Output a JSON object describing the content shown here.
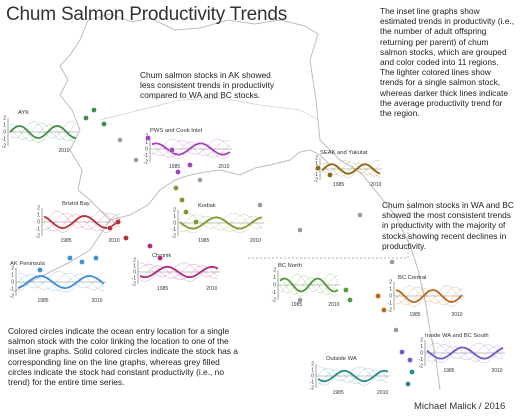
{
  "title": "Chum Salmon Productivity Trends",
  "notes": {
    "inset_description": "The inset line graphs show estimated trends in productivity (i.e., the number of adult offspring returning per parent) of chum salmon stocks, which are grouped and color coded into 11 regions. The lighter colored lines show trends for a single salmon stock, whereas darker thick lines indicate the average productivity trend for the region.",
    "alaska": "Chum salmon stocks in AK showed less consistent trends in productivity compared to WA and BC stocks.",
    "wa_bc": "Chum salmon stocks in WA and BC showed the most consistent trends in productivity with the majority of stocks showing recent declines in productivity.",
    "circles": "Colored circles indicate the ocean entry location for a single salmon stock with the color linking the location to one of the inset line graphs. Solid colored circles indicate the stock has a corresponding line on the line graphs, whereas grey filled circles indicate the stock had constant productivity (i.e., no trend) for the entire time series."
  },
  "credit": "Michael Malick / 2016",
  "colors": {
    "AYK": "#3f8f4a",
    "PWS": "#a63fbf",
    "Bristol": "#b5303b",
    "Kodiak": "#7d9a2e",
    "Chignik": "#b0297a",
    "AKPen": "#3e8fd6",
    "SEAK": "#8c6a12",
    "BCNorth": "#4f9a3a",
    "BCCentral": "#c0661b",
    "InsideWA": "#6a5acd",
    "OutsideWA": "#2a8a8c",
    "land": "#b9b9b9"
  },
  "regions": [
    {
      "key": "AYK",
      "name": "AYK",
      "x_ticks": [
        "2010"
      ],
      "y_ticks": [
        "2",
        "1",
        "0",
        "-1",
        "-2"
      ]
    },
    {
      "key": "PWS",
      "name": "PWS and Cook Inlet",
      "x_ticks": [
        "1985",
        "2010"
      ],
      "y_ticks": [
        "2",
        "1",
        "0",
        "-1",
        "-2"
      ]
    },
    {
      "key": "Bristol",
      "name": "Bristol Bay",
      "x_ticks": [
        "1985",
        "2010"
      ],
      "y_ticks": [
        "2",
        "1",
        "0",
        "-1",
        "-2"
      ]
    },
    {
      "key": "Kodiak",
      "name": "Kodiak",
      "x_ticks": [
        "1985",
        "2010"
      ],
      "y_ticks": [
        "2",
        "1",
        "0",
        "-1",
        "-2"
      ]
    },
    {
      "key": "Chignik",
      "name": "Chignik",
      "x_ticks": [
        "1985",
        "2010"
      ],
      "y_ticks": [
        "2",
        "1",
        "0",
        "-1",
        "-2"
      ]
    },
    {
      "key": "AKPen",
      "name": "AK Peninsula",
      "x_ticks": [
        "1985",
        "2010"
      ],
      "y_ticks": [
        "2",
        "1",
        "0",
        "-1",
        "-2"
      ]
    },
    {
      "key": "SEAK",
      "name": "SEAK and Yakutat",
      "x_ticks": [
        "1985",
        "2010"
      ],
      "y_ticks": [
        "2",
        "1",
        "0",
        "-1",
        "-2"
      ]
    },
    {
      "key": "BCNorth",
      "name": "BC North",
      "x_ticks": [
        "1985",
        "2010"
      ],
      "y_ticks": [
        "2",
        "1",
        "0",
        "-1",
        "-2"
      ]
    },
    {
      "key": "BCCentral",
      "name": "BC Central",
      "x_ticks": [
        "1985",
        "2010"
      ],
      "y_ticks": [
        "2",
        "1",
        "0",
        "-1",
        "-2"
      ]
    },
    {
      "key": "InsideWA",
      "name": "Inside WA and BC South",
      "x_ticks": [
        "1985",
        "2010"
      ],
      "y_ticks": [
        "2",
        "1",
        "0",
        "-1",
        "-2"
      ]
    },
    {
      "key": "OutsideWA",
      "name": "Outside WA",
      "x_ticks": [
        "1985",
        "2010"
      ],
      "y_ticks": [
        "2",
        "1",
        "0",
        "-1",
        "-2"
      ]
    }
  ]
}
